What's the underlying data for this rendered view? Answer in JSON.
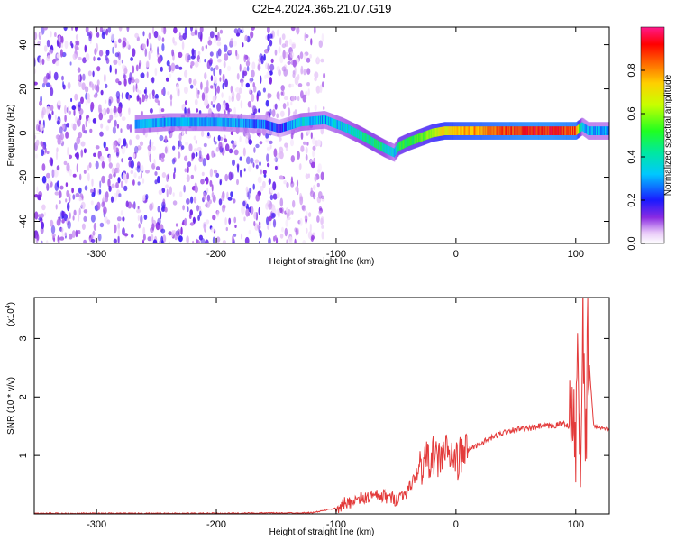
{
  "title": "C2E4.2024.365.21.07.G19",
  "chart_data": [
    {
      "type": "heatmap",
      "xlabel": "Height of straight line (km)",
      "ylabel": "Frequency (Hz)",
      "xlim": [
        -352,
        128
      ],
      "ylim": [
        -50,
        48
      ],
      "xticks": [
        -300,
        -200,
        -100,
        0,
        100
      ],
      "yticks": [
        -40,
        -20,
        0,
        20,
        40
      ],
      "colorbar": {
        "label": "Normalized spectral amplitude",
        "range": [
          0,
          1
        ],
        "ticks": [
          0.0,
          0.2,
          0.4,
          0.6,
          0.8
        ],
        "tick_labels": [
          "0.0",
          "0.2",
          "0.4",
          "0.6",
          "0.8"
        ]
      },
      "ridge": {
        "x": [
          -268,
          -240,
          -200,
          -160,
          -148,
          -130,
          -110,
          -95,
          -80,
          -70,
          -60,
          -52,
          -48,
          -40,
          -30,
          -20,
          -10,
          0,
          20,
          40,
          60,
          80,
          100,
          105,
          110,
          128
        ],
        "frequency": [
          4,
          5,
          5,
          4,
          2,
          5,
          6,
          3,
          -1,
          -4,
          -7,
          -9,
          -6,
          -4,
          -2,
          0,
          1,
          1,
          1,
          1,
          1,
          1,
          1,
          3,
          1,
          1
        ],
        "amplitude": [
          0.3,
          0.3,
          0.3,
          0.25,
          0.2,
          0.35,
          0.3,
          0.35,
          0.4,
          0.45,
          0.4,
          0.3,
          0.5,
          0.5,
          0.55,
          0.6,
          0.7,
          0.75,
          0.8,
          0.85,
          0.9,
          0.9,
          0.85,
          0.3,
          0.3,
          0.3
        ]
      },
      "noise_region_x": [
        -352,
        -110
      ]
    },
    {
      "type": "line",
      "xlabel": "Height of straight line (km)",
      "ylabel": "SNR (10 * v/v)",
      "yscale_label": "(x10",
      "yscale_exp": "4",
      "xlim": [
        -352,
        128
      ],
      "ylim": [
        0,
        3.7
      ],
      "xticks": [
        -300,
        -200,
        -100,
        0,
        100
      ],
      "yticks": [
        1,
        2,
        3
      ],
      "series": [
        {
          "color": "#e33a3a",
          "x": [
            -352,
            -300,
            -200,
            -120,
            -100,
            -90,
            -80,
            -70,
            -60,
            -50,
            -40,
            -30,
            -25,
            -20,
            -15,
            -10,
            -5,
            0,
            10,
            20,
            30,
            40,
            50,
            60,
            70,
            80,
            90,
            95,
            100,
            102,
            104,
            106,
            108,
            110,
            115,
            128
          ],
          "y": [
            0.01,
            0.01,
            0.01,
            0.02,
            0.1,
            0.2,
            0.25,
            0.3,
            0.3,
            0.25,
            0.4,
            0.8,
            0.9,
            1.0,
            0.9,
            1.1,
            1.0,
            0.9,
            1.1,
            1.2,
            1.3,
            1.4,
            1.45,
            1.45,
            1.5,
            1.5,
            1.55,
            1.5,
            1.4,
            2.5,
            1.0,
            3.7,
            0.3,
            2.9,
            1.5,
            1.45
          ]
        }
      ]
    }
  ]
}
